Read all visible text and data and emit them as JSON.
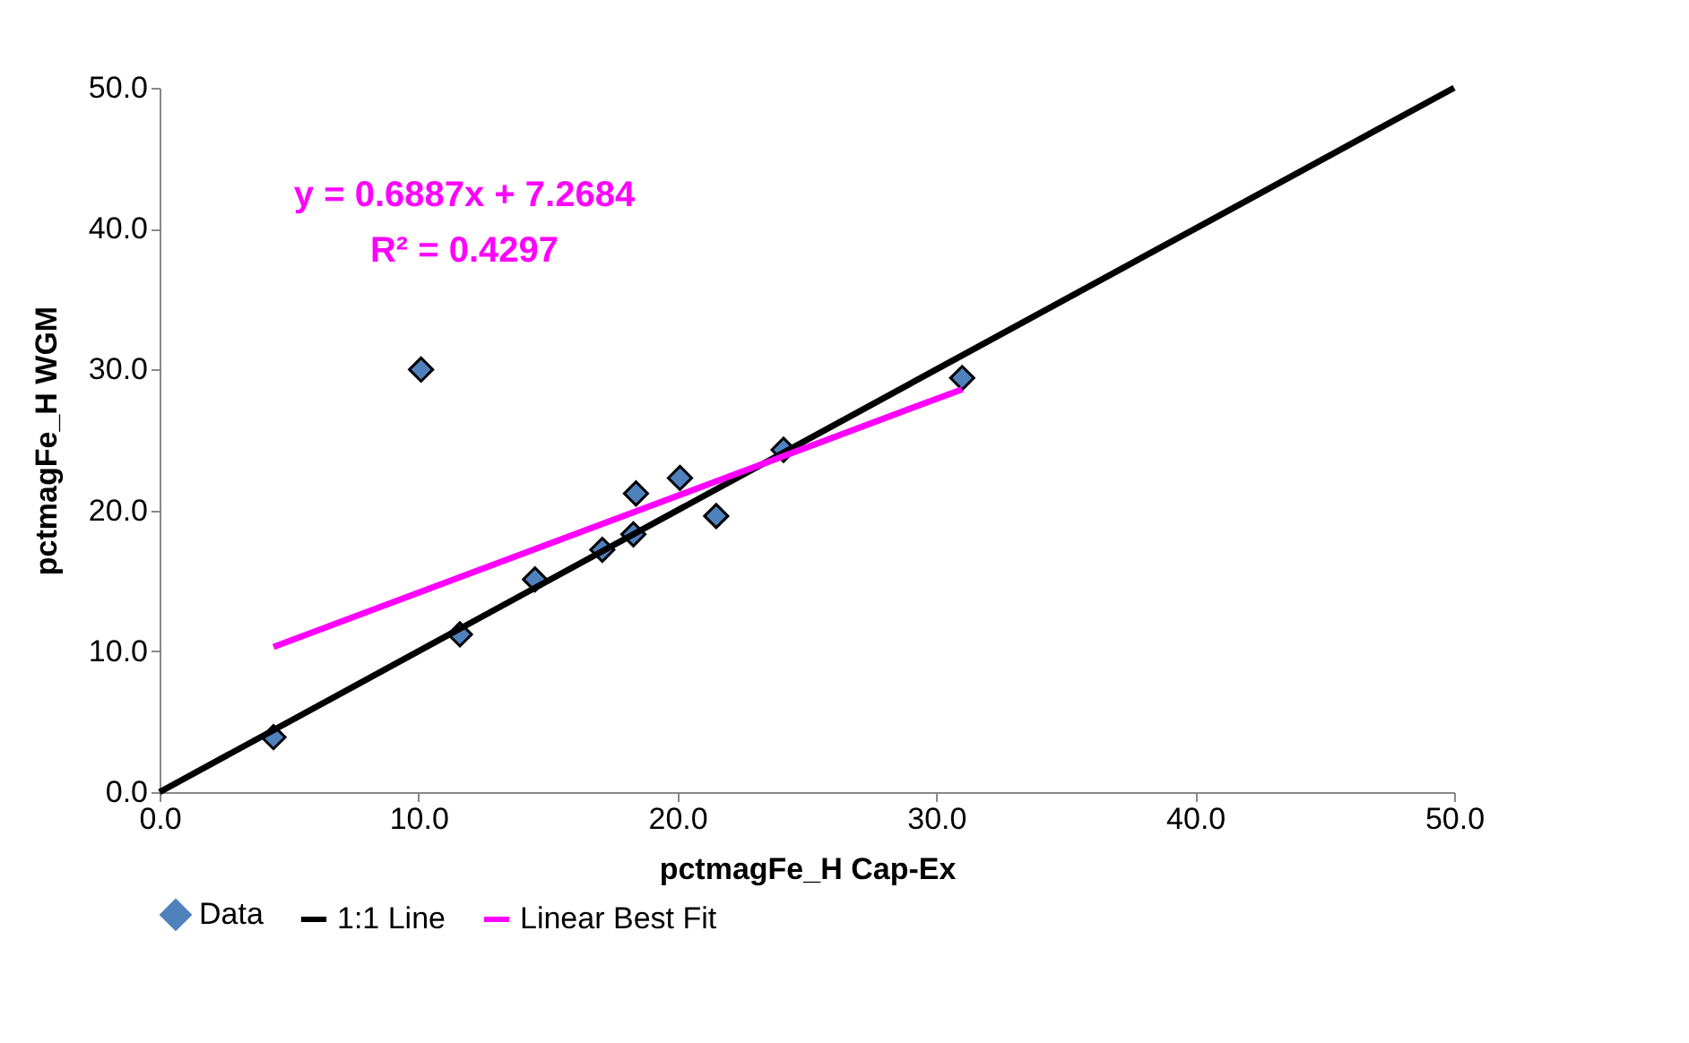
{
  "chart_data": {
    "type": "scatter",
    "xlabel": "pctmagFe_H Cap-Ex",
    "ylabel": "pctmagFe_H WGM",
    "xlim": [
      0,
      50
    ],
    "ylim": [
      0,
      50
    ],
    "xticks": [
      {
        "value": 0,
        "label": "0.0"
      },
      {
        "value": 10,
        "label": "10.0"
      },
      {
        "value": 20,
        "label": "20.0"
      },
      {
        "value": 30,
        "label": "30.0"
      },
      {
        "value": 40,
        "label": "40.0"
      },
      {
        "value": 50,
        "label": "50.0"
      }
    ],
    "yticks": [
      {
        "value": 0,
        "label": "0.0"
      },
      {
        "value": 10,
        "label": "10.0"
      },
      {
        "value": 20,
        "label": "20.0"
      },
      {
        "value": 30,
        "label": "30.0"
      },
      {
        "value": 40,
        "label": "40.0"
      },
      {
        "value": 50,
        "label": "50.0"
      }
    ],
    "grid": false,
    "legend": "bottom",
    "annotations": [
      "y = 0.6887x + 7.2684",
      "R² = 0.4297"
    ],
    "series": [
      {
        "name": "Data",
        "type": "scatter",
        "marker": "diamond",
        "color": "#4f81bd",
        "x": [
          4.4,
          10.1,
          11.6,
          14.5,
          17.1,
          18.3,
          18.4,
          20.1,
          21.5,
          24.1,
          31.0
        ],
        "values": [
          3.9,
          30.0,
          11.2,
          15.1,
          17.2,
          18.3,
          21.2,
          22.3,
          19.6,
          24.3,
          29.4
        ]
      },
      {
        "name": "1:1 Line",
        "type": "line",
        "marker": "none",
        "color": "#000000",
        "x": [
          0,
          50
        ],
        "values": [
          0,
          50
        ]
      },
      {
        "name": "Linear Best Fit",
        "type": "line",
        "marker": "none",
        "color": "#ff00ff",
        "x": [
          4.4,
          31.0
        ],
        "values": [
          10.3,
          28.6
        ]
      }
    ]
  }
}
